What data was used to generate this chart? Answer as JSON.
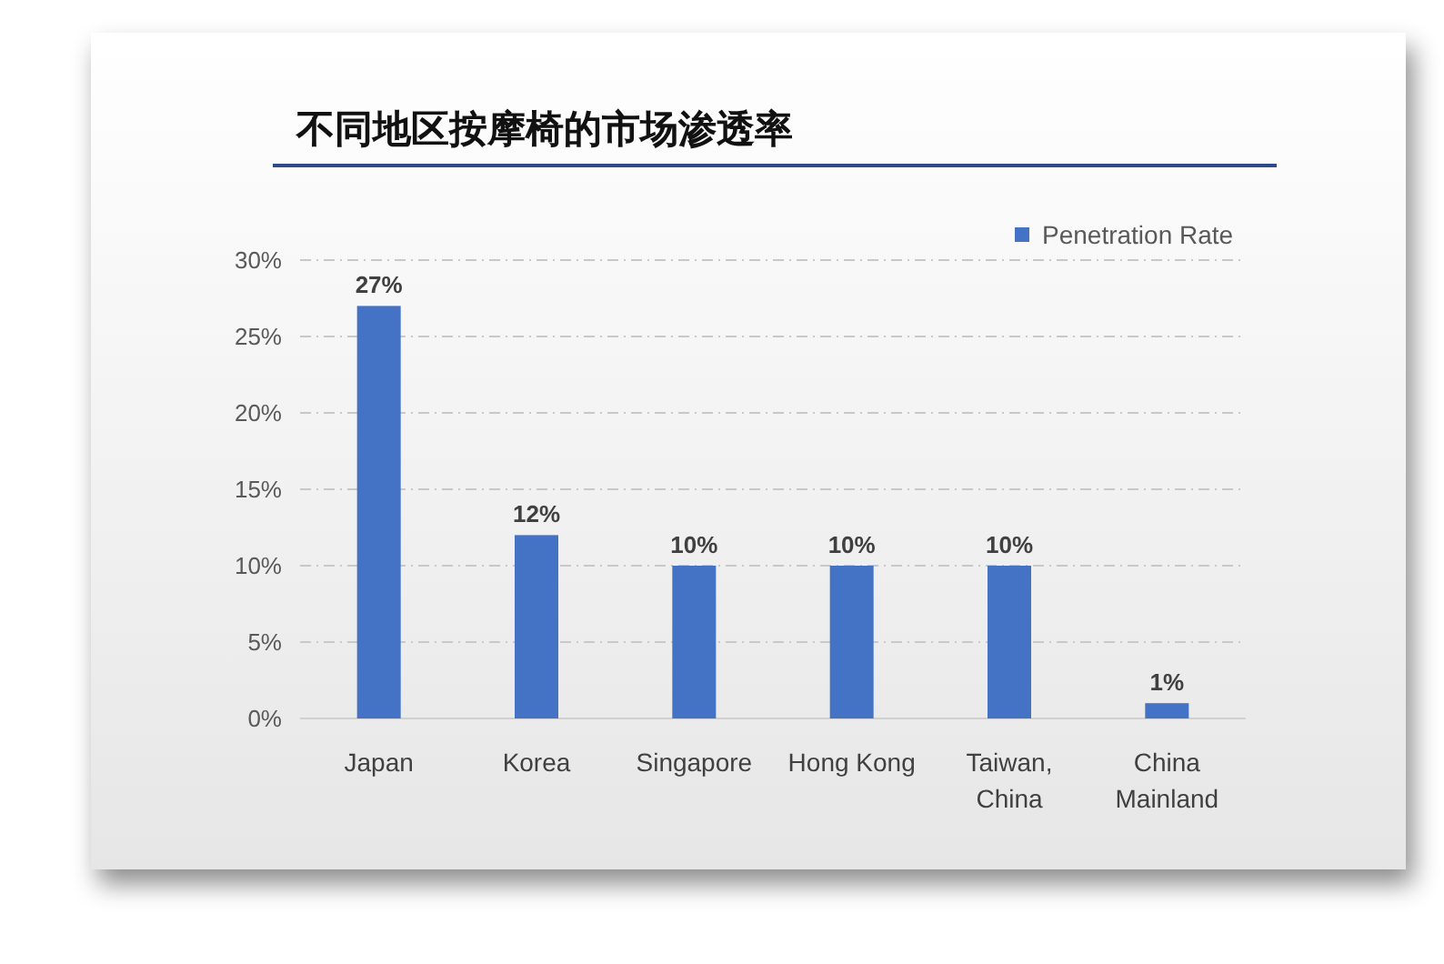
{
  "chart_data": {
    "type": "bar",
    "title": "不同地区按摩椅的市场渗透率",
    "categories": [
      "Japan",
      "Korea",
      "Singapore",
      "Hong Kong",
      "Taiwan, China",
      "China Mainland"
    ],
    "series": [
      {
        "name": "Penetration Rate",
        "color": "#4472c4",
        "values": [
          27,
          12,
          10,
          10,
          10,
          1
        ],
        "value_labels": [
          "27%",
          "12%",
          "10%",
          "10%",
          "10%",
          "1%"
        ]
      }
    ],
    "ylim": [
      0,
      30
    ],
    "yticks": [
      {
        "value": 0,
        "label": "0%"
      },
      {
        "value": 5,
        "label": "5%"
      },
      {
        "value": 10,
        "label": "10%"
      },
      {
        "value": 15,
        "label": "15%"
      },
      {
        "value": 20,
        "label": "20%"
      },
      {
        "value": 25,
        "label": "25%"
      },
      {
        "value": 30,
        "label": "30%"
      }
    ],
    "grid": "y",
    "legend": "top right"
  }
}
